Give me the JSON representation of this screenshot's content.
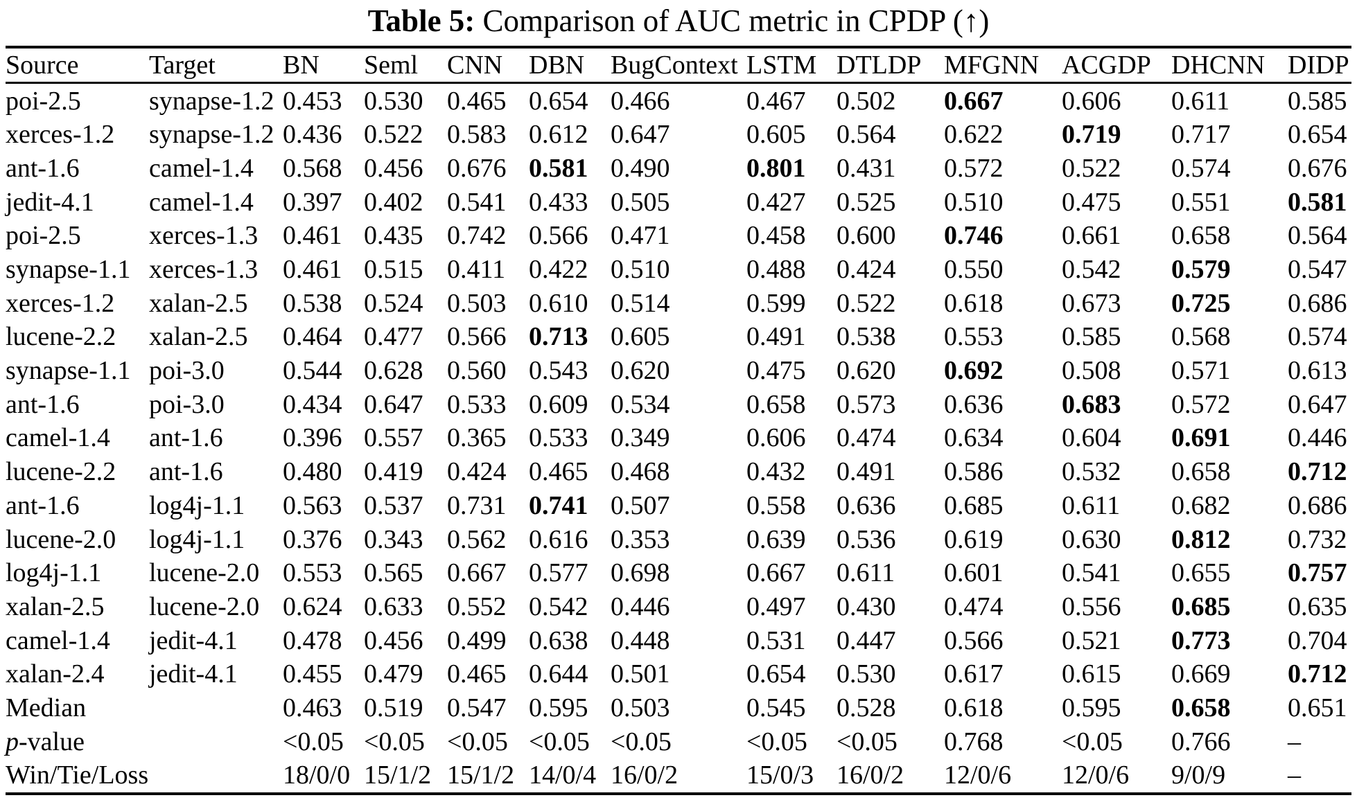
{
  "caption": {
    "label": "Table 5:",
    "text": " Comparison of AUC metric in CPDP (↑)"
  },
  "table": {
    "columns": [
      "Source",
      "Target",
      "BN",
      "Seml",
      "CNN",
      "DBN",
      "BugContext",
      "LSTM",
      "DTLDP",
      "MFGNN",
      "ACGDP",
      "DHCNN",
      "DIDP"
    ],
    "rows": [
      {
        "cells": [
          "poi-2.5",
          "synapse-1.2",
          "0.453",
          "0.530",
          "0.465",
          "0.654",
          "0.466",
          "0.467",
          "0.502",
          "0.667",
          "0.606",
          "0.611",
          "0.585"
        ],
        "bold": [
          9
        ]
      },
      {
        "cells": [
          "xerces-1.2",
          "synapse-1.2",
          "0.436",
          "0.522",
          "0.583",
          "0.612",
          "0.647",
          "0.605",
          "0.564",
          "0.622",
          "0.719",
          "0.717",
          "0.654"
        ],
        "bold": [
          10
        ]
      },
      {
        "cells": [
          "ant-1.6",
          "camel-1.4",
          "0.568",
          "0.456",
          "0.676",
          "0.581",
          "0.490",
          "0.801",
          "0.431",
          "0.572",
          "0.522",
          "0.574",
          "0.676"
        ],
        "bold": [
          5,
          7
        ]
      },
      {
        "cells": [
          "jedit-4.1",
          "camel-1.4",
          "0.397",
          "0.402",
          "0.541",
          "0.433",
          "0.505",
          "0.427",
          "0.525",
          "0.510",
          "0.475",
          "0.551",
          "0.581"
        ],
        "bold": [
          12
        ]
      },
      {
        "cells": [
          "poi-2.5",
          "xerces-1.3",
          "0.461",
          "0.435",
          "0.742",
          "0.566",
          "0.471",
          "0.458",
          "0.600",
          "0.746",
          "0.661",
          "0.658",
          "0.564"
        ],
        "bold": [
          9
        ]
      },
      {
        "cells": [
          "synapse-1.1",
          "xerces-1.3",
          "0.461",
          "0.515",
          "0.411",
          "0.422",
          "0.510",
          "0.488",
          "0.424",
          "0.550",
          "0.542",
          "0.579",
          "0.547"
        ],
        "bold": [
          11
        ]
      },
      {
        "cells": [
          "xerces-1.2",
          "xalan-2.5",
          "0.538",
          "0.524",
          "0.503",
          "0.610",
          "0.514",
          "0.599",
          "0.522",
          "0.618",
          "0.673",
          "0.725",
          "0.686"
        ],
        "bold": [
          11
        ]
      },
      {
        "cells": [
          "lucene-2.2",
          "xalan-2.5",
          "0.464",
          "0.477",
          "0.566",
          "0.713",
          "0.605",
          "0.491",
          "0.538",
          "0.553",
          "0.585",
          "0.568",
          "0.574"
        ],
        "bold": [
          5
        ]
      },
      {
        "cells": [
          "synapse-1.1",
          "poi-3.0",
          "0.544",
          "0.628",
          "0.560",
          "0.543",
          "0.620",
          "0.475",
          "0.620",
          "0.692",
          "0.508",
          "0.571",
          "0.613"
        ],
        "bold": [
          9
        ]
      },
      {
        "cells": [
          "ant-1.6",
          "poi-3.0",
          "0.434",
          "0.647",
          "0.533",
          "0.609",
          "0.534",
          "0.658",
          "0.573",
          "0.636",
          "0.683",
          "0.572",
          "0.647"
        ],
        "bold": [
          10
        ]
      },
      {
        "cells": [
          "camel-1.4",
          "ant-1.6",
          "0.396",
          "0.557",
          "0.365",
          "0.533",
          "0.349",
          "0.606",
          "0.474",
          "0.634",
          "0.604",
          "0.691",
          "0.446"
        ],
        "bold": [
          11
        ]
      },
      {
        "cells": [
          "lucene-2.2",
          "ant-1.6",
          "0.480",
          "0.419",
          "0.424",
          "0.465",
          "0.468",
          "0.432",
          "0.491",
          "0.586",
          "0.532",
          "0.658",
          "0.712"
        ],
        "bold": [
          12
        ]
      },
      {
        "cells": [
          "ant-1.6",
          "log4j-1.1",
          "0.563",
          "0.537",
          "0.731",
          "0.741",
          "0.507",
          "0.558",
          "0.636",
          "0.685",
          "0.611",
          "0.682",
          "0.686"
        ],
        "bold": [
          5
        ]
      },
      {
        "cells": [
          "lucene-2.0",
          "log4j-1.1",
          "0.376",
          "0.343",
          "0.562",
          "0.616",
          "0.353",
          "0.639",
          "0.536",
          "0.619",
          "0.630",
          "0.812",
          "0.732"
        ],
        "bold": [
          11
        ]
      },
      {
        "cells": [
          "log4j-1.1",
          "lucene-2.0",
          "0.553",
          "0.565",
          "0.667",
          "0.577",
          "0.698",
          "0.667",
          "0.611",
          "0.601",
          "0.541",
          "0.655",
          "0.757"
        ],
        "bold": [
          12
        ]
      },
      {
        "cells": [
          "xalan-2.5",
          "lucene-2.0",
          "0.624",
          "0.633",
          "0.552",
          "0.542",
          "0.446",
          "0.497",
          "0.430",
          "0.474",
          "0.556",
          "0.685",
          "0.635"
        ],
        "bold": [
          11
        ]
      },
      {
        "cells": [
          "camel-1.4",
          "jedit-4.1",
          "0.478",
          "0.456",
          "0.499",
          "0.638",
          "0.448",
          "0.531",
          "0.447",
          "0.566",
          "0.521",
          "0.773",
          "0.704"
        ],
        "bold": [
          11
        ]
      },
      {
        "cells": [
          "xalan-2.4",
          "jedit-4.1",
          "0.455",
          "0.479",
          "0.465",
          "0.644",
          "0.501",
          "0.654",
          "0.530",
          "0.617",
          "0.615",
          "0.669",
          "0.712"
        ],
        "bold": [
          12
        ]
      },
      {
        "cells": [
          "Median",
          "",
          "0.463",
          "0.519",
          "0.547",
          "0.595",
          "0.503",
          "0.545",
          "0.528",
          "0.618",
          "0.595",
          "0.658",
          "0.651"
        ],
        "bold": [
          11
        ]
      },
      {
        "cells": [
          "p-value",
          "",
          "<0.05",
          "<0.05",
          "<0.05",
          "<0.05",
          "<0.05",
          "<0.05",
          "<0.05",
          "0.768",
          "<0.05",
          "0.766",
          "–"
        ],
        "bold": [],
        "italic_first": true
      },
      {
        "cells": [
          "Win/Tie/Loss",
          "",
          "18/0/0",
          "15/1/2",
          "15/1/2",
          "14/0/4",
          "16/0/2",
          "15/0/3",
          "16/0/2",
          "12/0/6",
          "12/0/6",
          "9/0/9",
          "–"
        ],
        "bold": []
      }
    ]
  }
}
